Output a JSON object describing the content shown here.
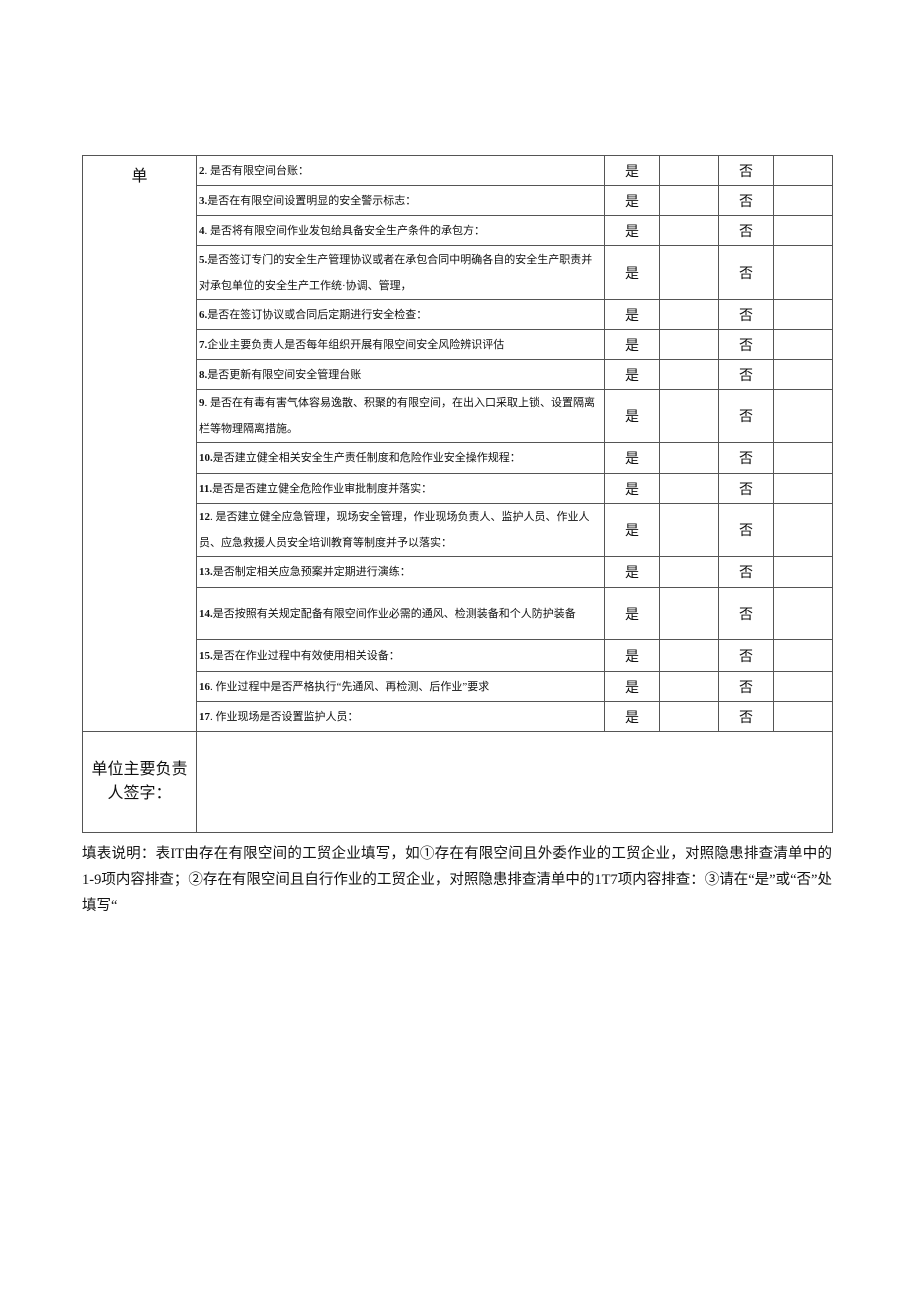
{
  "table": {
    "side_label": "单",
    "yes_label": "是",
    "no_label": "否",
    "items": [
      {
        "num": "2",
        "text": ". 是否有限空间台账："
      },
      {
        "num": "3.",
        "text": "是否在有限空间设置明显的安全警示标志："
      },
      {
        "num": "4",
        "text": ". 是否将有限空间作业发包给具备安全生产条件的承包方："
      },
      {
        "num": "5.",
        "text": "是否签订专门的安全生产管理协议或者在承包合同中明确各自的安全生产职责并对承包单位的安全生产工作统·协调、管理，"
      },
      {
        "num": "6.",
        "text": "是否在签订协议或合同后定期进行安全检查："
      },
      {
        "num": "7.",
        "text": "企业主要负责人是否每年组织开展有限空间安全风险辨识评估"
      },
      {
        "num": "8.",
        "text": "是否更新有限空间安全管理台账"
      },
      {
        "num": "9",
        "text": ". 是否在有毒有害气体容易逸散、积聚的有限空间，在出入口采取上锁、设置隔离栏等物理隔离措施。"
      },
      {
        "num": "10.",
        "text": "是否建立健全相关安全生产责任制度和危险作业安全操作规程："
      },
      {
        "num": "11.",
        "text": "是否是否建立健全危险作业审批制度并落实："
      },
      {
        "num": "12",
        "text": ". 是否建立健全应急管理，现场安全管理，作业现场负责人、监护人员、作业人员、应急救援人员安全培训教育等制度并予以落实："
      },
      {
        "num": "13.",
        "text": "是否制定相关应急预案并定期进行演练："
      },
      {
        "num": "14.",
        "text": "是否按照有关规定配备有限空间作业必需的通风、检测装备和个人防护装备"
      },
      {
        "num": "15.",
        "text": "是否在作业过程中有效使用相关设备："
      },
      {
        "num": "16",
        "text": ". 作业过程中是否严格执行“先通风、再检测、后作业”要求"
      },
      {
        "num": "17",
        "text": ". 作业现场是否设置监护人员："
      }
    ],
    "signature_label": "单位主要负责人签字："
  },
  "note": "填表说明：表IT由存在有限空间的工贸企业填写，如①存在有限空间且外委作业的工贸企业，对照隐患排查清单中的1-9项内容排查；②存在有限空间且自行作业的工贸企业，对照隐患排查清单中的1T7项内容排查：③请在“是”或“否”处填写“"
}
